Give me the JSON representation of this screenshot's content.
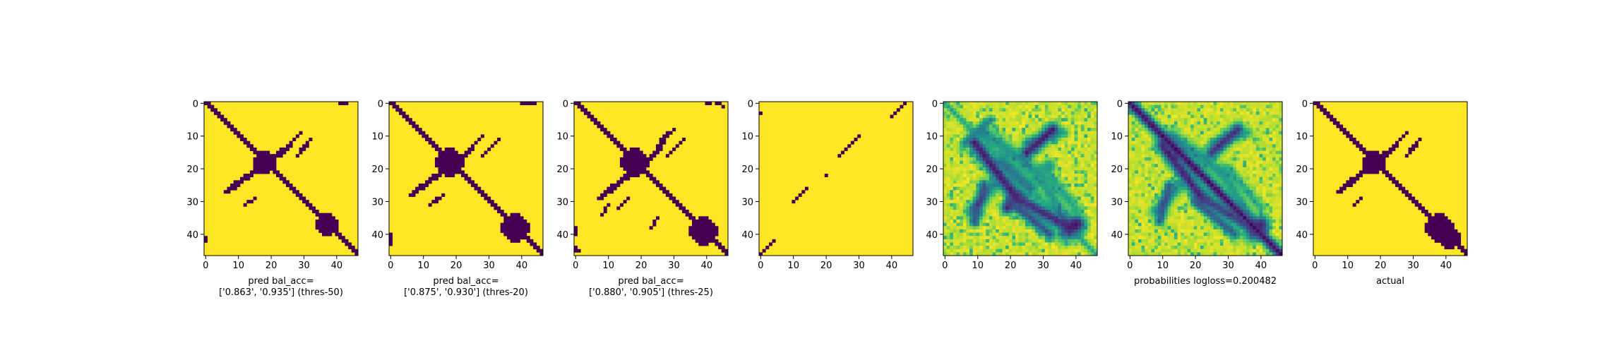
{
  "chart_data": {
    "type": "heatmap",
    "colormap": {
      "low": "#440154",
      "high": "#fde725",
      "mid": [
        "#3b528b",
        "#21918c",
        "#5ec962",
        "#a8db34"
      ]
    },
    "matrix_size": 47,
    "ticks": [
      0,
      10,
      20,
      30,
      40
    ],
    "panels": [
      {
        "id": "pred-thres-50",
        "kind": "binary",
        "caption_lines": [
          "pred bal_acc=",
          "['0.863', '0.935'] (thres-50)"
        ],
        "segments": [
          {
            "from": [
              0,
              0
            ],
            "to": [
              46,
              46
            ],
            "width": 2
          },
          {
            "from": [
              27,
              6
            ],
            "to": [
              13,
              25
            ],
            "width": 2
          },
          {
            "from": [
              13,
              25
            ],
            "to": [
              9,
              29
            ],
            "width": 1
          },
          {
            "from": [
              16,
              28
            ],
            "to": [
              11,
              32
            ],
            "width": 1
          },
          {
            "from": [
              31,
              12
            ],
            "to": [
              29,
              15
            ],
            "width": 1
          }
        ],
        "blobs": [
          {
            "c": [
              18,
              18
            ],
            "r": 3
          },
          {
            "c": [
              37,
              37
            ],
            "r": 3
          }
        ],
        "specks": [
          [
            0,
            41
          ],
          [
            0,
            42
          ],
          [
            0,
            43
          ],
          [
            41,
            0
          ],
          [
            42,
            0
          ]
        ]
      },
      {
        "id": "pred-thres-20",
        "kind": "binary",
        "caption_lines": [
          "pred bal_acc=",
          "['0.875', '0.930'] (thres-20)"
        ],
        "segments": [
          {
            "from": [
              0,
              0
            ],
            "to": [
              46,
              46
            ],
            "width": 2
          },
          {
            "from": [
              28,
              6
            ],
            "to": [
              14,
              24
            ],
            "width": 2
          },
          {
            "from": [
              14,
              24
            ],
            "to": [
              10,
              28
            ],
            "width": 1
          },
          {
            "from": [
              16,
              28
            ],
            "to": [
              11,
              33
            ],
            "width": 1
          },
          {
            "from": [
              31,
              12
            ],
            "to": [
              28,
              16
            ],
            "width": 1
          }
        ],
        "blobs": [
          {
            "c": [
              18,
              18
            ],
            "r": 4
          },
          {
            "c": [
              38,
              38
            ],
            "r": 4
          }
        ],
        "specks": [
          [
            0,
            40
          ],
          [
            0,
            41
          ],
          [
            0,
            42
          ],
          [
            0,
            43
          ],
          [
            0,
            44
          ],
          [
            40,
            0
          ],
          [
            41,
            0
          ],
          [
            42,
            0
          ],
          [
            43,
            0
          ]
        ]
      },
      {
        "id": "pred-thres-25",
        "kind": "binary",
        "caption_lines": [
          "pred bal_acc=",
          "['0.880', '0.905'] (thres-25)"
        ],
        "segments": [
          {
            "from": [
              0,
              0
            ],
            "to": [
              46,
              46
            ],
            "width": 2
          },
          {
            "from": [
              29,
              7
            ],
            "to": [
              15,
              24
            ],
            "width": 2
          },
          {
            "from": [
              15,
              24
            ],
            "to": [
              10,
              27
            ],
            "width": 2
          },
          {
            "from": [
              10,
              27
            ],
            "to": [
              8,
              30
            ],
            "width": 1
          },
          {
            "from": [
              16,
              28
            ],
            "to": [
              11,
              33
            ],
            "width": 1
          },
          {
            "from": [
              32,
              13
            ],
            "to": [
              29,
              16
            ],
            "width": 1
          },
          {
            "from": [
              34,
              8
            ],
            "to": [
              31,
              10
            ],
            "width": 1
          },
          {
            "from": [
              38,
              23
            ],
            "to": [
              35,
              25
            ],
            "width": 1
          }
        ],
        "blobs": [
          {
            "c": [
              18,
              18
            ],
            "r": 4
          },
          {
            "c": [
              39,
              39
            ],
            "r": 4
          }
        ],
        "specks": [
          [
            0,
            40
          ],
          [
            0,
            41
          ],
          [
            0,
            43
          ],
          [
            0,
            44
          ],
          [
            1,
            45
          ],
          [
            38,
            0
          ],
          [
            39,
            0
          ],
          [
            40,
            0
          ],
          [
            44,
            0
          ],
          [
            45,
            0
          ],
          [
            45,
            1
          ]
        ]
      },
      {
        "id": "pred-sparse",
        "kind": "binary",
        "caption_lines": [],
        "segments": [
          {
            "from": [
              0,
              44
            ],
            "to": [
              4,
              40
            ],
            "width": 1
          },
          {
            "from": [
              10,
              30
            ],
            "to": [
              16,
              24
            ],
            "width": 1
          },
          {
            "from": [
              26,
              14
            ],
            "to": [
              30,
              10
            ],
            "width": 1
          },
          {
            "from": [
              42,
              4
            ],
            "to": [
              46,
              0
            ],
            "width": 1
          }
        ],
        "blobs": [],
        "specks": [
          [
            22,
            20
          ],
          [
            3,
            0
          ]
        ]
      },
      {
        "id": "pred-probabilities",
        "kind": "continuous",
        "caption_lines": [],
        "features": [
          {
            "from": [
              12,
              9
            ],
            "to": [
              29,
              22
            ],
            "w": 2.2,
            "v": 0.06
          },
          {
            "from": [
              8,
              33
            ],
            "to": [
              15,
              25
            ],
            "w": 2.0,
            "v": 0.06
          },
          {
            "from": [
              29,
              22
            ],
            "to": [
              38,
              38
            ],
            "w": 2.2,
            "v": 0.1
          },
          {
            "from": [
              18,
              17
            ],
            "to": [
              26,
              26
            ],
            "w": 2.0,
            "v": 0.35
          },
          {
            "from": [
              0,
              0
            ],
            "to": [
              46,
              46
            ],
            "w": 1.0,
            "v": 0.55
          },
          {
            "from": [
              25,
              12
            ],
            "to": [
              36,
              9
            ],
            "w": 1.6,
            "v": 0.2
          },
          {
            "from": [
              30,
              20
            ],
            "to": [
              40,
              32
            ],
            "w": 1.6,
            "v": 0.2
          },
          {
            "from": [
              5,
              14
            ],
            "to": [
              12,
              6
            ],
            "w": 1.2,
            "v": 0.4
          }
        ],
        "spots": [
          [
            37,
            40,
            2.8,
            0.05
          ],
          [
            32,
            19,
            1.8,
            0.1
          ]
        ],
        "noise": 0.12
      },
      {
        "id": "pred-combined",
        "kind": "continuous",
        "caption_lines": [
          "probabilities logloss=0.200482"
        ],
        "features": [
          {
            "from": [
              0,
              0
            ],
            "to": [
              46,
              46
            ],
            "w": 1.6,
            "v": 0.0
          },
          {
            "from": [
              13,
              10
            ],
            "to": [
              29,
              22
            ],
            "w": 2.0,
            "v": 0.06
          },
          {
            "from": [
              8,
              33
            ],
            "to": [
              15,
              25
            ],
            "w": 1.9,
            "v": 0.1
          },
          {
            "from": [
              29,
              22
            ],
            "to": [
              39,
              39
            ],
            "w": 2.0,
            "v": 0.15
          },
          {
            "from": [
              25,
              12
            ],
            "to": [
              36,
              9
            ],
            "w": 1.5,
            "v": 0.25
          },
          {
            "from": [
              30,
              20
            ],
            "to": [
              40,
              32
            ],
            "w": 1.5,
            "v": 0.25
          }
        ],
        "spots": [
          [
            37,
            40,
            2.5,
            0.1
          ]
        ],
        "noise": 0.12
      },
      {
        "id": "actual",
        "kind": "binary",
        "caption_lines": [
          "actual"
        ],
        "segments": [
          {
            "from": [
              0,
              0
            ],
            "to": [
              46,
              46
            ],
            "width": 2
          },
          {
            "from": [
              27,
              7
            ],
            "to": [
              13,
              24
            ],
            "width": 2
          },
          {
            "from": [
              14,
              23
            ],
            "to": [
              9,
              28
            ],
            "width": 1
          },
          {
            "from": [
              16,
              28
            ],
            "to": [
              11,
              32
            ],
            "width": 1
          },
          {
            "from": [
              31,
              12
            ],
            "to": [
              29,
              14
            ],
            "width": 1
          }
        ],
        "blobs": [
          {
            "c": [
              18,
              18
            ],
            "r": 3
          },
          {
            "c": [
              38,
              38
            ],
            "r": 4
          },
          {
            "c": [
              41,
              41
            ],
            "r": 3
          }
        ],
        "specks": []
      }
    ]
  }
}
